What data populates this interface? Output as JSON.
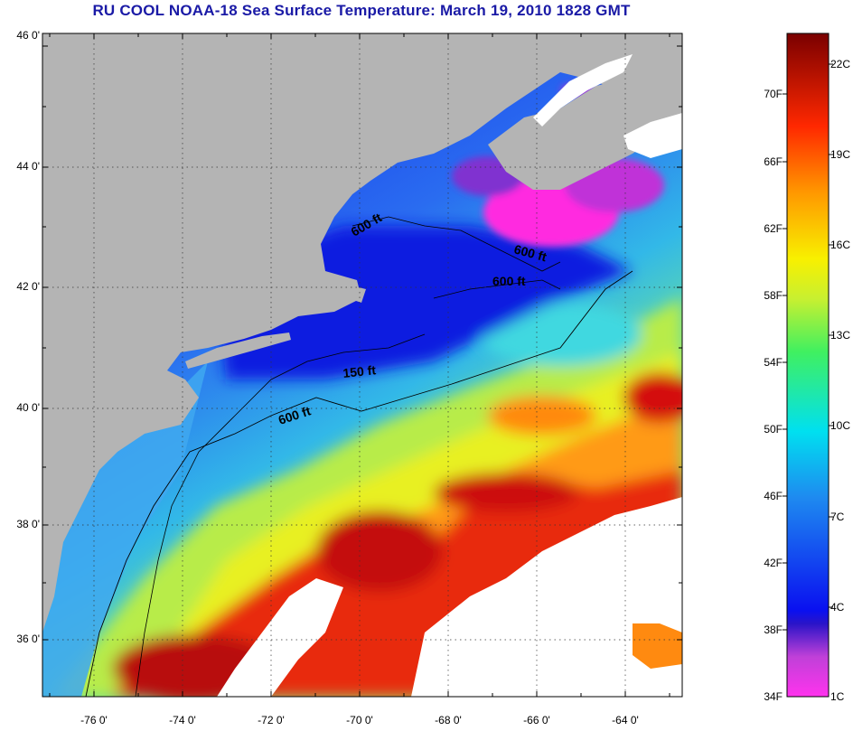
{
  "title": "RU COOL  NOAA-18  Sea Surface Temperature:  March 19, 2010 1828 GMT",
  "axes": {
    "latitude_ticks": [
      "46 0'",
      "44 0'",
      "42 0'",
      "40 0'",
      "38 0'",
      "36 0'"
    ],
    "longitude_ticks": [
      "-76 0'",
      "-74 0'",
      "-72 0'",
      "-70 0'",
      "-68 0'",
      "-66 0'",
      "-64 0'"
    ]
  },
  "contours": {
    "labels": [
      "600 ft",
      "600 ft",
      "600 ft",
      "150 ft",
      "600 ft"
    ]
  },
  "colorbar": {
    "fahrenheit_labels": [
      "70F",
      "66F",
      "62F",
      "58F",
      "54F",
      "50F",
      "46F",
      "42F",
      "38F",
      "34F"
    ],
    "celsius_labels": [
      "22C",
      "19C",
      "16C",
      "13C",
      "10C",
      "7C",
      "4C",
      "1C"
    ]
  },
  "colors": {
    "title": "#1a1aa6",
    "land": "#b4b4b4",
    "cold_magenta": "#ff29e0",
    "cold_blue": "#0a2ad8",
    "warm_red": "#c80e0e"
  }
}
